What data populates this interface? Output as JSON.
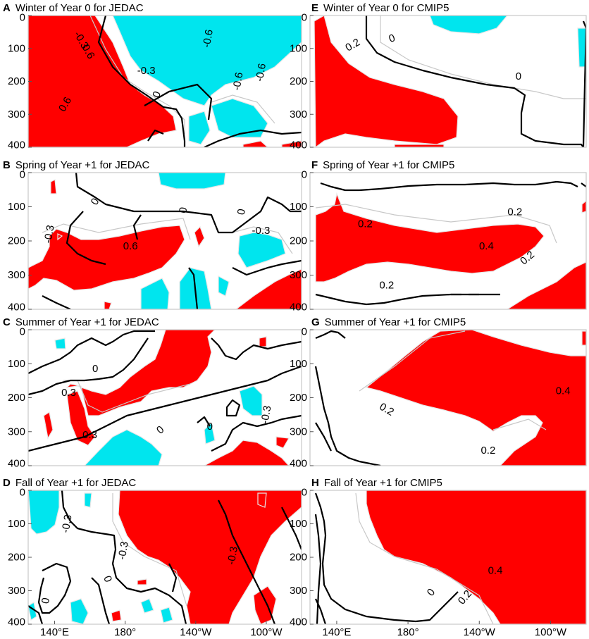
{
  "figure": {
    "colors": {
      "positive": "#ff0000",
      "negative": "#00e5ee",
      "zero_contour": "#000000",
      "minor_contour": "#c8c8c8",
      "frame": "#c8c8c8"
    },
    "y_ticks": [
      "0",
      "100",
      "200",
      "300",
      "400"
    ],
    "x_ticks": [
      "140°E",
      "180°",
      "140°W",
      "100°W"
    ]
  },
  "chart_data": [
    {
      "type": "heatmap",
      "id": "A",
      "letter": "A",
      "title": "Winter of Year 0 for JEDAC",
      "x_range": [
        125,
        280
      ],
      "y_range": [
        0,
        400
      ],
      "y_reversed": true,
      "contour_labels": [
        {
          "text": "-0.3",
          "x": 155,
          "y": 75,
          "rot": 60
        },
        {
          "text": "0.6",
          "x": 159,
          "y": 110,
          "rot": 60
        },
        {
          "text": "-0.3",
          "x": 192,
          "y": 168,
          "rot": 0
        },
        {
          "text": "-0.6",
          "x": 227,
          "y": 70,
          "rot": -80
        },
        {
          "text": "-0.6",
          "x": 257,
          "y": 173,
          "rot": -80
        },
        {
          "text": "-0.6",
          "x": 244,
          "y": 200,
          "rot": -80
        },
        {
          "text": "0.6",
          "x": 146,
          "y": 270,
          "rot": -60
        },
        {
          "text": "0",
          "x": 198,
          "y": 240,
          "rot": -70
        }
      ]
    },
    {
      "type": "heatmap",
      "id": "E",
      "letter": "E",
      "title": "Winter of Year 0 for CMIP5",
      "x_range": [
        125,
        280
      ],
      "y_range": [
        0,
        400
      ],
      "y_reversed": true,
      "contour_labels": [
        {
          "text": "0",
          "x": 171,
          "y": 70,
          "rot": -20
        },
        {
          "text": "0.2",
          "x": 149,
          "y": 90,
          "rot": -30
        },
        {
          "text": "0",
          "x": 242,
          "y": 185,
          "rot": 0
        }
      ]
    },
    {
      "type": "heatmap",
      "id": "B",
      "letter": "B",
      "title": "Spring of Year +1 for JEDAC",
      "x_range": [
        125,
        280
      ],
      "y_range": [
        0,
        400
      ],
      "y_reversed": true,
      "contour_labels": [
        {
          "text": "0",
          "x": 163,
          "y": 85,
          "rot": -60
        },
        {
          "text": "0",
          "x": 213,
          "y": 110,
          "rot": -80
        },
        {
          "text": "0",
          "x": 246,
          "y": 115,
          "rot": -80
        },
        {
          "text": "-0.3",
          "x": 137,
          "y": 180,
          "rot": -80
        },
        {
          "text": "0.6",
          "x": 183,
          "y": 215,
          "rot": 0
        },
        {
          "text": "-0.3",
          "x": 257,
          "y": 170,
          "rot": 0
        }
      ]
    },
    {
      "type": "heatmap",
      "id": "F",
      "letter": "F",
      "title": "Spring of Year +1 for CMIP5",
      "x_range": [
        125,
        280
      ],
      "y_range": [
        0,
        400
      ],
      "y_reversed": true,
      "contour_labels": [
        {
          "text": "0.2",
          "x": 156,
          "y": 150,
          "rot": 0
        },
        {
          "text": "0.2",
          "x": 240,
          "y": 115,
          "rot": 0
        },
        {
          "text": "0.4",
          "x": 224,
          "y": 215,
          "rot": 0
        },
        {
          "text": "0.2",
          "x": 247,
          "y": 250,
          "rot": -40
        },
        {
          "text": "0.2",
          "x": 168,
          "y": 330,
          "rot": 0
        }
      ]
    },
    {
      "type": "heatmap",
      "id": "C",
      "letter": "C",
      "title": "Summer of Year +1 for JEDAC",
      "x_range": [
        125,
        280
      ],
      "y_range": [
        0,
        400
      ],
      "y_reversed": true,
      "contour_labels": [
        {
          "text": "0",
          "x": 163,
          "y": 115,
          "rot": 0
        },
        {
          "text": "0.3",
          "x": 148,
          "y": 185,
          "rot": 0
        },
        {
          "text": "0.3",
          "x": 160,
          "y": 310,
          "rot": 0
        },
        {
          "text": "0",
          "x": 200,
          "y": 295,
          "rot": -40
        },
        {
          "text": "-0.3",
          "x": 260,
          "y": 250,
          "rot": -80
        },
        {
          "text": "0",
          "x": 228,
          "y": 285,
          "rot": 0
        }
      ]
    },
    {
      "type": "heatmap",
      "id": "G",
      "letter": "G",
      "title": "Summer of Year +1 for CMIP5",
      "x_range": [
        125,
        280
      ],
      "y_range": [
        0,
        400
      ],
      "y_reversed": true,
      "contour_labels": [
        {
          "text": "0.2",
          "x": 168,
          "y": 235,
          "rot": 30
        },
        {
          "text": "0.4",
          "x": 267,
          "y": 180,
          "rot": 0
        },
        {
          "text": "0.2",
          "x": 225,
          "y": 355,
          "rot": 0
        }
      ]
    },
    {
      "type": "heatmap",
      "id": "D",
      "letter": "D",
      "title": "Fall of Year +1 for JEDAC",
      "x_range": [
        125,
        280
      ],
      "y_range": [
        0,
        400
      ],
      "y_reversed": true,
      "contour_labels": [
        {
          "text": "-0.3",
          "x": 147,
          "y": 100,
          "rot": -80
        },
        {
          "text": "-0.3",
          "x": 179,
          "y": 180,
          "rot": -80
        },
        {
          "text": "-0.3",
          "x": 241,
          "y": 195,
          "rot": -80
        },
        {
          "text": "0",
          "x": 170,
          "y": 265,
          "rot": 70
        },
        {
          "text": "0",
          "x": 135,
          "y": 330,
          "rot": -80
        }
      ]
    },
    {
      "type": "heatmap",
      "id": "H",
      "letter": "H",
      "title": "Fall of Year +1 for CMIP5",
      "x_range": [
        125,
        280
      ],
      "y_range": [
        0,
        400
      ],
      "y_reversed": true,
      "contour_labels": [
        {
          "text": "0.4",
          "x": 229,
          "y": 240,
          "rot": 0
        },
        {
          "text": "0",
          "x": 193,
          "y": 305,
          "rot": -50
        },
        {
          "text": "0.2",
          "x": 212,
          "y": 320,
          "rot": -50
        }
      ]
    }
  ]
}
